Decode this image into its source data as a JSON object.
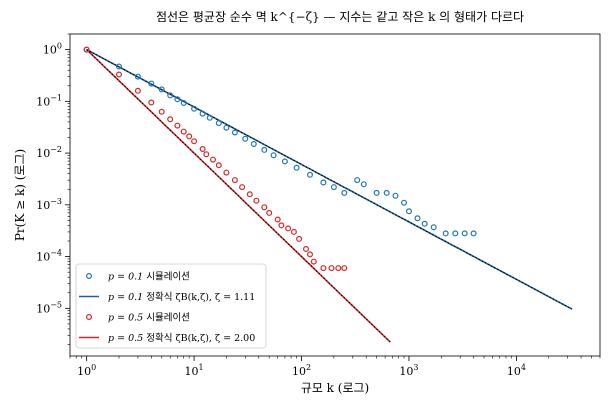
{
  "chart_data": {
    "type": "scatter",
    "title": "점선은 평균장 순수 멱 k^{−ζ} — 지수는 같고 작은 k 의 형태가 다르다",
    "xlabel": "규모 k (로그)",
    "ylabel": "Pr(K ≥ k) (로그)",
    "xscale": "log",
    "yscale": "log",
    "xlim": [
      0.7,
      60000
    ],
    "ylim": [
      1.2e-06,
      2.0
    ],
    "x_ticks": [
      1,
      10,
      100,
      1000,
      10000
    ],
    "x_tick_labels": [
      {
        "base": "10",
        "exp": "0"
      },
      {
        "base": "10",
        "exp": "1"
      },
      {
        "base": "10",
        "exp": "2"
      },
      {
        "base": "10",
        "exp": "3"
      },
      {
        "base": "10",
        "exp": "4"
      }
    ],
    "y_ticks": [
      1e-05,
      0.0001,
      0.001,
      0.01,
      0.1,
      1
    ],
    "y_tick_labels": [
      {
        "base": "10",
        "exp": "−5"
      },
      {
        "base": "10",
        "exp": "−4"
      },
      {
        "base": "10",
        "exp": "−3"
      },
      {
        "base": "10",
        "exp": "−2"
      },
      {
        "base": "10",
        "exp": "−1"
      },
      {
        "base": "10",
        "exp": "0"
      }
    ],
    "grid": false,
    "legend_position": "lower-left",
    "colors": {
      "blue": "#1f77b4",
      "blue_line": "#1f5f8f",
      "red": "#d62728",
      "dotted": "#000000"
    },
    "series": [
      {
        "name": "p = 0.1 시뮬레이션",
        "kind": "markers",
        "color": "#1f77b4",
        "points": [
          [
            1,
            1.0
          ],
          [
            2,
            0.47
          ],
          [
            3,
            0.3
          ],
          [
            4,
            0.22
          ],
          [
            5,
            0.17
          ],
          [
            6,
            0.13
          ],
          [
            7,
            0.11
          ],
          [
            8,
            0.093
          ],
          [
            10,
            0.072
          ],
          [
            12,
            0.058
          ],
          [
            14,
            0.048
          ],
          [
            17,
            0.038
          ],
          [
            20,
            0.031
          ],
          [
            24,
            0.025
          ],
          [
            30,
            0.019
          ],
          [
            36,
            0.015
          ],
          [
            45,
            0.0115
          ],
          [
            55,
            0.0091
          ],
          [
            70,
            0.0069
          ],
          [
            90,
            0.0052
          ],
          [
            120,
            0.0038
          ],
          [
            160,
            0.0027
          ],
          [
            200,
            0.0022
          ],
          [
            250,
            0.0017
          ],
          [
            330,
            0.003
          ],
          [
            380,
            0.0025
          ],
          [
            500,
            0.0017
          ],
          [
            620,
            0.0017
          ],
          [
            750,
            0.0015
          ],
          [
            900,
            0.0011
          ],
          [
            1000,
            0.00075
          ],
          [
            1200,
            0.00055
          ],
          [
            1400,
            0.00043
          ],
          [
            1700,
            0.00037
          ],
          [
            2200,
            0.00028
          ],
          [
            2700,
            0.00028
          ],
          [
            3300,
            0.00028
          ],
          [
            4000,
            0.00028
          ]
        ]
      },
      {
        "name": "p = 0.1 정확식 ζB(k,ζ), ζ = 1.11",
        "kind": "line",
        "color": "#1f5f8f",
        "exponent": 1.11,
        "x_range": [
          1,
          33000
        ]
      },
      {
        "name": "p = 0.5 시뮬레이션",
        "kind": "markers",
        "color": "#d62728",
        "points": [
          [
            1,
            1.0
          ],
          [
            2,
            0.33
          ],
          [
            3,
            0.16
          ],
          [
            4,
            0.095
          ],
          [
            5,
            0.063
          ],
          [
            6,
            0.045
          ],
          [
            7,
            0.034
          ],
          [
            8,
            0.026
          ],
          [
            9,
            0.021
          ],
          [
            10,
            0.017
          ],
          [
            12,
            0.012
          ],
          [
            13,
            0.0095
          ],
          [
            15,
            0.0075
          ],
          [
            17,
            0.0058
          ],
          [
            20,
            0.0042
          ],
          [
            24,
            0.003
          ],
          [
            28,
            0.0022
          ],
          [
            33,
            0.0016
          ],
          [
            38,
            0.0012
          ],
          [
            45,
            0.0009
          ],
          [
            50,
            0.0007
          ],
          [
            60,
            0.00052
          ],
          [
            65,
            0.0004
          ],
          [
            75,
            0.00035
          ],
          [
            85,
            0.0003
          ],
          [
            95,
            0.00022
          ],
          [
            110,
            0.00014
          ],
          [
            120,
            0.00011
          ],
          [
            130,
            8e-05
          ],
          [
            160,
            6e-05
          ],
          [
            190,
            6e-05
          ],
          [
            220,
            6e-05
          ],
          [
            250,
            6e-05
          ]
        ]
      },
      {
        "name": "p = 0.5 정확식 ζB(k,ζ), ζ = 2.00",
        "kind": "line",
        "color": "#d62728",
        "exponent": 2.0,
        "x_range": [
          1,
          670
        ]
      },
      {
        "kind": "dotted",
        "color": "#000000",
        "exponent": 1.11,
        "x_range": [
          1,
          33000
        ]
      },
      {
        "kind": "dotted",
        "color": "#000000",
        "exponent": 2.0,
        "x_range": [
          1,
          670
        ]
      }
    ],
    "legend": [
      {
        "kind": "marker",
        "color": "#1f77b4",
        "label_math": "p = 0.1",
        "label_text": " 시뮬레이션"
      },
      {
        "kind": "line",
        "color": "#1f5f8f",
        "label_math": "p = 0.1",
        "label_text": " 정확식 ζB(k,ζ), ζ = 1.11"
      },
      {
        "kind": "marker",
        "color": "#d62728",
        "label_math": "p = 0.5",
        "label_text": " 시뮬레이션"
      },
      {
        "kind": "line",
        "color": "#d62728",
        "label_math": "p = 0.5",
        "label_text": " 정확식 ζB(k,ζ), ζ = 2.00"
      }
    ]
  }
}
